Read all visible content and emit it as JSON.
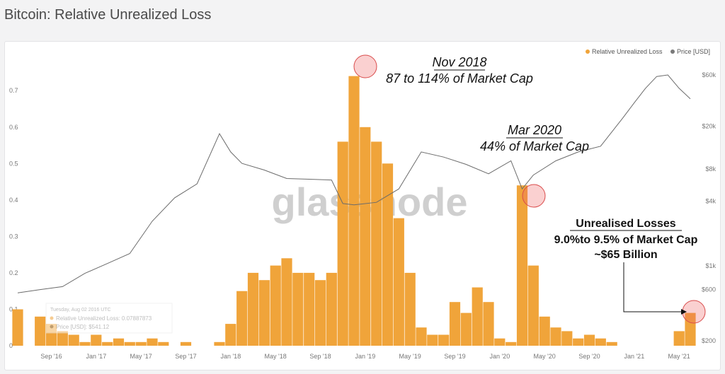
{
  "page": {
    "title": "Bitcoin: Relative Unrealized Loss"
  },
  "watermark": "glassnode",
  "legend": [
    {
      "label": "Relative Unrealized Loss",
      "color": "#f0a43a"
    },
    {
      "label": "Price [USD]",
      "color": "#7a7a7a"
    }
  ],
  "tooltip": {
    "date": "Tuesday, Aug 02 2016 UTC",
    "rows": [
      "Relative Unrealized Loss: 0.07887873",
      "Price [USD]: $541.12"
    ]
  },
  "annotations": {
    "nov2018": {
      "title": "Nov 2018",
      "subtitle": "87 to 114% of Market Cap"
    },
    "mar2020": {
      "title": "Mar 2020",
      "subtitle": "44% of Market Cap"
    },
    "may2021": {
      "title": "Unrealised Losses",
      "line1": "9.0%to 9.5% of Market Cap",
      "line2": "~$65 Billion"
    }
  },
  "chart_data": {
    "type": "bar",
    "title": "Bitcoin: Relative Unrealized Loss",
    "x_ticks": [
      "Sep '16",
      "Jan '17",
      "May '17",
      "Sep '17",
      "Jan '18",
      "May '18",
      "Sep '18",
      "Jan '19",
      "May '19",
      "Sep '19",
      "Jan '20",
      "May '20",
      "Sep '20",
      "Jan '21",
      "May '21"
    ],
    "y_left_ticks": [
      "0",
      "0.1",
      "0.2",
      "0.3",
      "0.4",
      "0.5",
      "0.6",
      "0.7"
    ],
    "y_left_range": [
      0,
      0.78
    ],
    "y_right_ticks": [
      "$200",
      "$600",
      "$1k",
      "$4k",
      "$8k",
      "$20k",
      "$60k"
    ],
    "y_right_tick_values": [
      200,
      600,
      1000,
      4000,
      8000,
      20000,
      60000
    ],
    "y_right_range": [
      180,
      80000
    ],
    "y_right_scale": "log",
    "legend_placement": "top-right",
    "series": [
      {
        "name": "Relative Unrealized Loss",
        "color": "#f0a43a",
        "type": "bar",
        "x": [
          "2016-06",
          "2016-08",
          "2016-09",
          "2016-10",
          "2016-11",
          "2016-12",
          "2017-01",
          "2017-02",
          "2017-03",
          "2017-04",
          "2017-05",
          "2017-06",
          "2017-07",
          "2017-08",
          "2017-09",
          "2017-10",
          "2017-11",
          "2017-12",
          "2018-01",
          "2018-02",
          "2018-03",
          "2018-04",
          "2018-05",
          "2018-06",
          "2018-07",
          "2018-08",
          "2018-09",
          "2018-10",
          "2018-11",
          "2018-12",
          "2019-01",
          "2019-02",
          "2019-03",
          "2019-04",
          "2019-05",
          "2019-06",
          "2019-07",
          "2019-08",
          "2019-09",
          "2019-10",
          "2019-11",
          "2019-12",
          "2020-01",
          "2020-02",
          "2020-03",
          "2020-04",
          "2020-05",
          "2020-06",
          "2020-07",
          "2020-08",
          "2020-09",
          "2020-10",
          "2020-11",
          "2020-12",
          "2021-01",
          "2021-02",
          "2021-03",
          "2021-04",
          "2021-05",
          "2021-06"
        ],
        "values": [
          0.1,
          0.08,
          0.06,
          0.04,
          0.03,
          0.01,
          0.03,
          0.01,
          0.02,
          0.01,
          0.01,
          0.02,
          0.01,
          0.0,
          0.01,
          0.0,
          0.0,
          0.01,
          0.06,
          0.15,
          0.2,
          0.18,
          0.22,
          0.24,
          0.2,
          0.2,
          0.18,
          0.2,
          0.56,
          0.74,
          0.6,
          0.56,
          0.5,
          0.35,
          0.2,
          0.05,
          0.03,
          0.03,
          0.12,
          0.09,
          0.16,
          0.12,
          0.02,
          0.01,
          0.44,
          0.22,
          0.08,
          0.05,
          0.04,
          0.02,
          0.03,
          0.02,
          0.01,
          0.0,
          0.0,
          0.0,
          0.0,
          0.0,
          0.04,
          0.09
        ]
      },
      {
        "name": "Price [USD]",
        "color": "#7a7a7a",
        "type": "line",
        "x": [
          "2016-06",
          "2016-08",
          "2016-10",
          "2016-12",
          "2017-02",
          "2017-04",
          "2017-06",
          "2017-08",
          "2017-10",
          "2017-12",
          "2018-01",
          "2018-02",
          "2018-04",
          "2018-06",
          "2018-08",
          "2018-10",
          "2018-11",
          "2018-12",
          "2019-02",
          "2019-04",
          "2019-06",
          "2019-08",
          "2019-10",
          "2019-12",
          "2020-02",
          "2020-03",
          "2020-04",
          "2020-06",
          "2020-08",
          "2020-10",
          "2020-12",
          "2021-01",
          "2021-02",
          "2021-03",
          "2021-04",
          "2021-05",
          "2021-06"
        ],
        "values": [
          560,
          600,
          640,
          850,
          1050,
          1300,
          2600,
          4300,
          5800,
          17000,
          11500,
          9000,
          7800,
          6500,
          6400,
          6300,
          3800,
          3700,
          3900,
          5200,
          11500,
          10300,
          8800,
          7200,
          9500,
          5200,
          7000,
          9500,
          11500,
          13000,
          24000,
          33000,
          45000,
          58000,
          60000,
          45000,
          36000
        ]
      }
    ]
  }
}
